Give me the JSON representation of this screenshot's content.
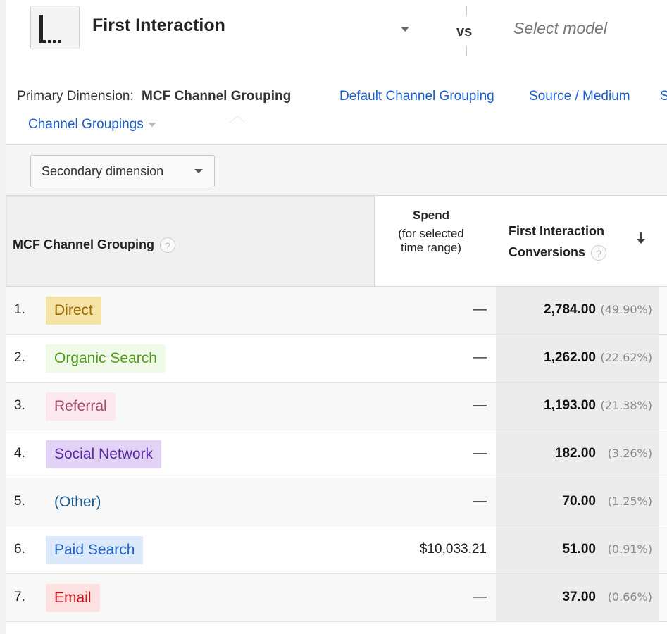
{
  "model": {
    "name": "First Interaction",
    "vs_label": "vs",
    "compare_placeholder": "Select model"
  },
  "primary_dimension": {
    "label": "Primary Dimension:",
    "active": "MCF Channel Grouping",
    "links": [
      "Default Channel Grouping",
      "Source / Medium",
      "S"
    ],
    "more_label": "Channel Groupings"
  },
  "toolbar": {
    "secondary_dimension_label": "Secondary dimension"
  },
  "table": {
    "headers": {
      "dimension": "MCF Channel Grouping",
      "spend_title": "Spend",
      "spend_sub_1": "(for selected",
      "spend_sub_2": "time range)",
      "conv_line_1": "First Interaction",
      "conv_line_2": "Conversions",
      "help_glyph": "?"
    },
    "rows": [
      {
        "num": "1.",
        "channel": "Direct",
        "spend": "—",
        "conversions": "2,784.00",
        "pct": "(49.90%)",
        "chip_bg": "#f4e3a4",
        "chip_fg": "#9a6a00"
      },
      {
        "num": "2.",
        "channel": "Organic Search",
        "spend": "—",
        "conversions": "1,262.00",
        "pct": "(22.62%)",
        "chip_bg": "#f0fae8",
        "chip_fg": "#4f9a1a"
      },
      {
        "num": "3.",
        "channel": "Referral",
        "spend": "—",
        "conversions": "1,193.00",
        "pct": "(21.38%)",
        "chip_bg": "#fde8ef",
        "chip_fg": "#a34a6a"
      },
      {
        "num": "4.",
        "channel": "Social Network",
        "spend": "—",
        "conversions": "182.00",
        "pct": "(3.26%)",
        "chip_bg": "#e2d3f6",
        "chip_fg": "#5a2aa6"
      },
      {
        "num": "5.",
        "channel": "(Other)",
        "spend": "—",
        "conversions": "70.00",
        "pct": "(1.25%)",
        "chip_bg": "transparent",
        "chip_fg": "#1a5b8c"
      },
      {
        "num": "6.",
        "channel": "Paid Search",
        "spend": "$10,033.21",
        "conversions": "51.00",
        "pct": "(0.91%)",
        "chip_bg": "#dbe9fb",
        "chip_fg": "#1c64c8"
      },
      {
        "num": "7.",
        "channel": "Email",
        "spend": "—",
        "conversions": "37.00",
        "pct": "(0.66%)",
        "chip_bg": "#fde0e0",
        "chip_fg": "#c8121a"
      }
    ]
  },
  "icons": {
    "model": "first-interaction-model-icon",
    "sort": "sort-descending-arrow-icon",
    "help": "help-icon"
  },
  "colors": {
    "link": "#1c5fc6",
    "active_column_bg": "#ececec"
  }
}
